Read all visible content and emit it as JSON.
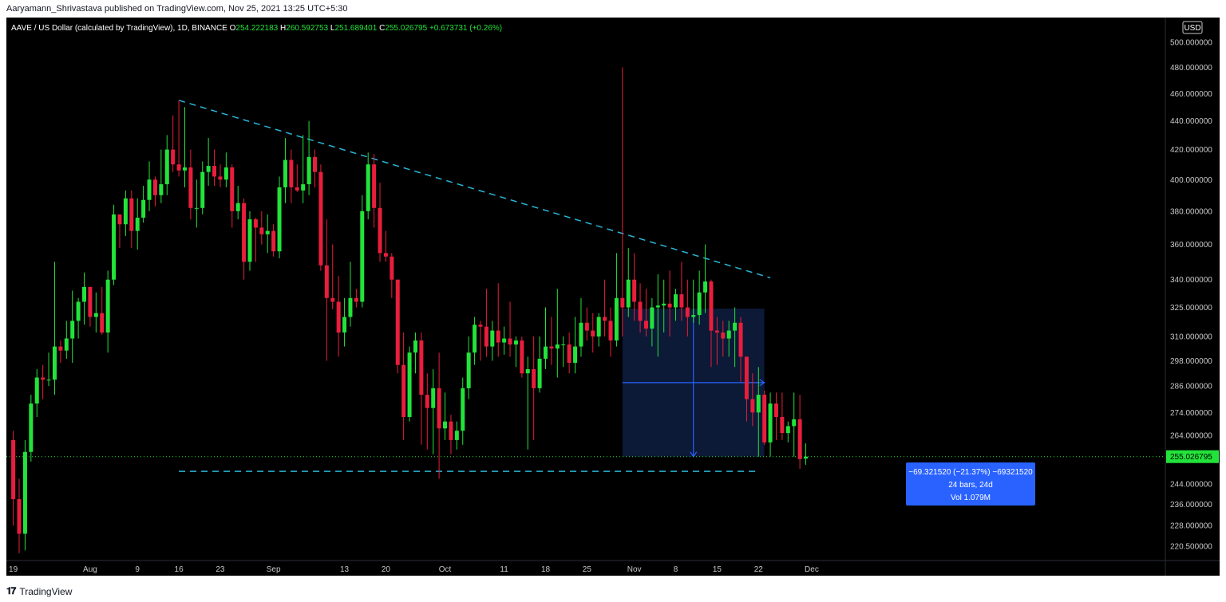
{
  "publisher_line": "Aaryamann_Shrivastava published on TradingView.com, Nov 25, 2021 13:25 UTC+5:30",
  "brand": {
    "name": "TradingView",
    "logo_icon": "tradingview-logo-icon"
  },
  "colors": {
    "background": "#000000",
    "up": "#22e33a",
    "down": "#e81e3c",
    "trendline": "#29b6d6",
    "ohlc_values": "#22e33a",
    "measure_box": "#0d1a3a",
    "measure_label": "#2962ff",
    "axis_text": "#c8c8c8",
    "grid": "#1c1c1c"
  },
  "chart_data": {
    "type": "candlestick",
    "symbol_line": "AAVE / US Dollar (calculated by TradingView), 1D, BINANCE",
    "ohlc": [
      {
        "label": "O",
        "value": "254.222183"
      },
      {
        "label": "H",
        "value": "260.592753"
      },
      {
        "label": "L",
        "value": "251.689401"
      },
      {
        "label": "C",
        "value": "255.026795"
      }
    ],
    "change": "+0.673731 (+0.26%)",
    "currency": "USD",
    "y_scale": "log",
    "y_ticks": [
      "500.000000",
      "480.000000",
      "460.000000",
      "440.000000",
      "420.000000",
      "400.000000",
      "380.000000",
      "360.000000",
      "340.000000",
      "325.000000",
      "310.000000",
      "298.000000",
      "286.000000",
      "274.000000",
      "264.000000",
      "244.000000",
      "236.000000",
      "228.000000",
      "220.500000"
    ],
    "x_ticks": [
      {
        "label": "19",
        "i": 0
      },
      {
        "label": "Aug",
        "i": 13
      },
      {
        "label": "9",
        "i": 21
      },
      {
        "label": "16",
        "i": 28
      },
      {
        "label": "23",
        "i": 35
      },
      {
        "label": "Sep",
        "i": 44
      },
      {
        "label": "13",
        "i": 56
      },
      {
        "label": "20",
        "i": 63
      },
      {
        "label": "Oct",
        "i": 73
      },
      {
        "label": "11",
        "i": 83
      },
      {
        "label": "18",
        "i": 90
      },
      {
        "label": "25",
        "i": 97
      },
      {
        "label": "Nov",
        "i": 105
      },
      {
        "label": "8",
        "i": 112
      },
      {
        "label": "15",
        "i": 119
      },
      {
        "label": "22",
        "i": 126
      },
      {
        "label": "Dec",
        "i": 135
      }
    ],
    "last_price": "255.026795",
    "candles": [
      {
        "o": 262,
        "h": 266,
        "l": 228,
        "c": 238
      },
      {
        "o": 238,
        "h": 246,
        "l": 218,
        "c": 225
      },
      {
        "o": 225,
        "h": 262,
        "l": 219,
        "c": 257
      },
      {
        "o": 257,
        "h": 282,
        "l": 253,
        "c": 278
      },
      {
        "o": 278,
        "h": 294,
        "l": 272,
        "c": 290
      },
      {
        "o": 290,
        "h": 296,
        "l": 280,
        "c": 289
      },
      {
        "o": 289,
        "h": 302,
        "l": 286,
        "c": 289
      },
      {
        "o": 289,
        "h": 350,
        "l": 282,
        "c": 305
      },
      {
        "o": 305,
        "h": 308,
        "l": 297,
        "c": 303
      },
      {
        "o": 303,
        "h": 318,
        "l": 299,
        "c": 309
      },
      {
        "o": 309,
        "h": 334,
        "l": 297,
        "c": 318
      },
      {
        "o": 318,
        "h": 330,
        "l": 309,
        "c": 328
      },
      {
        "o": 328,
        "h": 344,
        "l": 316,
        "c": 336
      },
      {
        "o": 336,
        "h": 336,
        "l": 315,
        "c": 320
      },
      {
        "o": 320,
        "h": 333,
        "l": 312,
        "c": 322
      },
      {
        "o": 322,
        "h": 336,
        "l": 311,
        "c": 312
      },
      {
        "o": 312,
        "h": 345,
        "l": 302,
        "c": 340
      },
      {
        "o": 340,
        "h": 384,
        "l": 337,
        "c": 378
      },
      {
        "o": 378,
        "h": 378,
        "l": 358,
        "c": 372
      },
      {
        "o": 372,
        "h": 393,
        "l": 365,
        "c": 388
      },
      {
        "o": 388,
        "h": 393,
        "l": 358,
        "c": 368
      },
      {
        "o": 368,
        "h": 388,
        "l": 357,
        "c": 376
      },
      {
        "o": 376,
        "h": 396,
        "l": 373,
        "c": 387
      },
      {
        "o": 387,
        "h": 412,
        "l": 380,
        "c": 400
      },
      {
        "o": 400,
        "h": 402,
        "l": 383,
        "c": 390
      },
      {
        "o": 390,
        "h": 420,
        "l": 385,
        "c": 397
      },
      {
        "o": 397,
        "h": 430,
        "l": 390,
        "c": 420
      },
      {
        "o": 420,
        "h": 444,
        "l": 405,
        "c": 410
      },
      {
        "o": 410,
        "h": 455,
        "l": 402,
        "c": 406
      },
      {
        "o": 406,
        "h": 450,
        "l": 395,
        "c": 408
      },
      {
        "o": 408,
        "h": 420,
        "l": 375,
        "c": 382
      },
      {
        "o": 382,
        "h": 400,
        "l": 370,
        "c": 382
      },
      {
        "o": 382,
        "h": 412,
        "l": 378,
        "c": 405
      },
      {
        "o": 405,
        "h": 428,
        "l": 396,
        "c": 409
      },
      {
        "o": 409,
        "h": 420,
        "l": 396,
        "c": 402
      },
      {
        "o": 402,
        "h": 410,
        "l": 395,
        "c": 400
      },
      {
        "o": 400,
        "h": 418,
        "l": 395,
        "c": 408
      },
      {
        "o": 408,
        "h": 410,
        "l": 370,
        "c": 380
      },
      {
        "o": 380,
        "h": 396,
        "l": 375,
        "c": 385
      },
      {
        "o": 385,
        "h": 388,
        "l": 340,
        "c": 350
      },
      {
        "o": 350,
        "h": 380,
        "l": 345,
        "c": 375
      },
      {
        "o": 375,
        "h": 376,
        "l": 350,
        "c": 370
      },
      {
        "o": 370,
        "h": 380,
        "l": 360,
        "c": 366
      },
      {
        "o": 366,
        "h": 378,
        "l": 355,
        "c": 368
      },
      {
        "o": 368,
        "h": 372,
        "l": 353,
        "c": 356
      },
      {
        "o": 356,
        "h": 402,
        "l": 352,
        "c": 395
      },
      {
        "o": 395,
        "h": 428,
        "l": 385,
        "c": 413
      },
      {
        "o": 413,
        "h": 420,
        "l": 385,
        "c": 395
      },
      {
        "o": 395,
        "h": 410,
        "l": 392,
        "c": 393
      },
      {
        "o": 393,
        "h": 430,
        "l": 385,
        "c": 397
      },
      {
        "o": 397,
        "h": 440,
        "l": 390,
        "c": 415
      },
      {
        "o": 415,
        "h": 420,
        "l": 395,
        "c": 405
      },
      {
        "o": 405,
        "h": 410,
        "l": 345,
        "c": 348
      },
      {
        "o": 348,
        "h": 375,
        "l": 298,
        "c": 330
      },
      {
        "o": 330,
        "h": 360,
        "l": 324,
        "c": 328
      },
      {
        "o": 328,
        "h": 342,
        "l": 300,
        "c": 312
      },
      {
        "o": 312,
        "h": 330,
        "l": 305,
        "c": 320
      },
      {
        "o": 320,
        "h": 350,
        "l": 315,
        "c": 330
      },
      {
        "o": 330,
        "h": 335,
        "l": 325,
        "c": 328
      },
      {
        "o": 328,
        "h": 390,
        "l": 325,
        "c": 380
      },
      {
        "o": 380,
        "h": 418,
        "l": 375,
        "c": 410
      },
      {
        "o": 410,
        "h": 417,
        "l": 370,
        "c": 382
      },
      {
        "o": 382,
        "h": 398,
        "l": 350,
        "c": 355
      },
      {
        "o": 355,
        "h": 368,
        "l": 350,
        "c": 353
      },
      {
        "o": 353,
        "h": 355,
        "l": 330,
        "c": 340
      },
      {
        "o": 340,
        "h": 340,
        "l": 292,
        "c": 296
      },
      {
        "o": 296,
        "h": 312,
        "l": 262,
        "c": 272
      },
      {
        "o": 272,
        "h": 305,
        "l": 270,
        "c": 302
      },
      {
        "o": 302,
        "h": 312,
        "l": 292,
        "c": 308
      },
      {
        "o": 308,
        "h": 312,
        "l": 260,
        "c": 282
      },
      {
        "o": 282,
        "h": 292,
        "l": 258,
        "c": 276
      },
      {
        "o": 276,
        "h": 294,
        "l": 256,
        "c": 285
      },
      {
        "o": 285,
        "h": 302,
        "l": 246,
        "c": 267
      },
      {
        "o": 267,
        "h": 283,
        "l": 262,
        "c": 270
      },
      {
        "o": 270,
        "h": 273,
        "l": 256,
        "c": 262
      },
      {
        "o": 262,
        "h": 270,
        "l": 258,
        "c": 266
      },
      {
        "o": 266,
        "h": 290,
        "l": 260,
        "c": 285
      },
      {
        "o": 285,
        "h": 310,
        "l": 280,
        "c": 302
      },
      {
        "o": 302,
        "h": 320,
        "l": 296,
        "c": 316
      },
      {
        "o": 316,
        "h": 318,
        "l": 298,
        "c": 315
      },
      {
        "o": 315,
        "h": 335,
        "l": 300,
        "c": 305
      },
      {
        "o": 305,
        "h": 318,
        "l": 298,
        "c": 313
      },
      {
        "o": 313,
        "h": 338,
        "l": 300,
        "c": 307
      },
      {
        "o": 307,
        "h": 315,
        "l": 301,
        "c": 309
      },
      {
        "o": 309,
        "h": 328,
        "l": 300,
        "c": 306
      },
      {
        "o": 306,
        "h": 310,
        "l": 295,
        "c": 308
      },
      {
        "o": 308,
        "h": 310,
        "l": 290,
        "c": 292
      },
      {
        "o": 292,
        "h": 300,
        "l": 258,
        "c": 294
      },
      {
        "o": 294,
        "h": 310,
        "l": 262,
        "c": 285
      },
      {
        "o": 285,
        "h": 310,
        "l": 283,
        "c": 299
      },
      {
        "o": 299,
        "h": 325,
        "l": 294,
        "c": 305
      },
      {
        "o": 305,
        "h": 320,
        "l": 296,
        "c": 304
      },
      {
        "o": 304,
        "h": 335,
        "l": 290,
        "c": 306
      },
      {
        "o": 306,
        "h": 310,
        "l": 295,
        "c": 306
      },
      {
        "o": 306,
        "h": 312,
        "l": 292,
        "c": 297
      },
      {
        "o": 297,
        "h": 320,
        "l": 292,
        "c": 305
      },
      {
        "o": 305,
        "h": 330,
        "l": 300,
        "c": 317
      },
      {
        "o": 317,
        "h": 325,
        "l": 308,
        "c": 313
      },
      {
        "o": 313,
        "h": 322,
        "l": 302,
        "c": 310
      },
      {
        "o": 310,
        "h": 322,
        "l": 305,
        "c": 320
      },
      {
        "o": 320,
        "h": 340,
        "l": 310,
        "c": 318
      },
      {
        "o": 318,
        "h": 325,
        "l": 300,
        "c": 308
      },
      {
        "o": 308,
        "h": 355,
        "l": 305,
        "c": 330
      },
      {
        "o": 330,
        "h": 480,
        "l": 310,
        "c": 325
      },
      {
        "o": 325,
        "h": 358,
        "l": 320,
        "c": 340
      },
      {
        "o": 340,
        "h": 355,
        "l": 318,
        "c": 328
      },
      {
        "o": 328,
        "h": 338,
        "l": 312,
        "c": 318
      },
      {
        "o": 318,
        "h": 335,
        "l": 310,
        "c": 314
      },
      {
        "o": 314,
        "h": 330,
        "l": 305,
        "c": 325
      },
      {
        "o": 325,
        "h": 343,
        "l": 300,
        "c": 326
      },
      {
        "o": 326,
        "h": 340,
        "l": 312,
        "c": 327
      },
      {
        "o": 327,
        "h": 345,
        "l": 310,
        "c": 325
      },
      {
        "o": 325,
        "h": 335,
        "l": 318,
        "c": 332
      },
      {
        "o": 332,
        "h": 350,
        "l": 318,
        "c": 325
      },
      {
        "o": 325,
        "h": 340,
        "l": 310,
        "c": 320
      },
      {
        "o": 320,
        "h": 340,
        "l": 317,
        "c": 321
      },
      {
        "o": 321,
        "h": 345,
        "l": 316,
        "c": 333
      },
      {
        "o": 333,
        "h": 360,
        "l": 322,
        "c": 339
      },
      {
        "o": 339,
        "h": 340,
        "l": 295,
        "c": 313
      },
      {
        "o": 313,
        "h": 320,
        "l": 296,
        "c": 312
      },
      {
        "o": 312,
        "h": 318,
        "l": 300,
        "c": 309
      },
      {
        "o": 309,
        "h": 318,
        "l": 300,
        "c": 313
      },
      {
        "o": 313,
        "h": 325,
        "l": 295,
        "c": 317
      },
      {
        "o": 317,
        "h": 320,
        "l": 288,
        "c": 300
      },
      {
        "o": 300,
        "h": 300,
        "l": 270,
        "c": 280
      },
      {
        "o": 280,
        "h": 292,
        "l": 268,
        "c": 274
      },
      {
        "o": 274,
        "h": 295,
        "l": 255,
        "c": 282
      },
      {
        "o": 282,
        "h": 284,
        "l": 260,
        "c": 261
      },
      {
        "o": 261,
        "h": 283,
        "l": 255,
        "c": 278
      },
      {
        "o": 278,
        "h": 283,
        "l": 262,
        "c": 272
      },
      {
        "o": 272,
        "h": 283,
        "l": 262,
        "c": 265
      },
      {
        "o": 265,
        "h": 270,
        "l": 261,
        "c": 268
      },
      {
        "o": 268,
        "h": 283,
        "l": 255,
        "c": 271
      },
      {
        "o": 271,
        "h": 282,
        "l": 250,
        "c": 254
      },
      {
        "o": 254.222183,
        "h": 260.592753,
        "l": 251.689401,
        "c": 255.026795
      }
    ],
    "trendlines": [
      {
        "from": {
          "i": 28,
          "v": 455
        },
        "to": {
          "i": 128,
          "v": 341
        }
      },
      {
        "from": {
          "i": 28,
          "v": 249
        },
        "to": {
          "i": 126,
          "v": 249
        }
      }
    ],
    "measure": {
      "from_i": 103,
      "to_i": 127,
      "top": 324.35,
      "bottom": 255.03,
      "lines": [
        "−69.321520 (−21.37%) −69321520",
        "24 bars, 24d",
        "Vol 1.079M"
      ]
    }
  }
}
